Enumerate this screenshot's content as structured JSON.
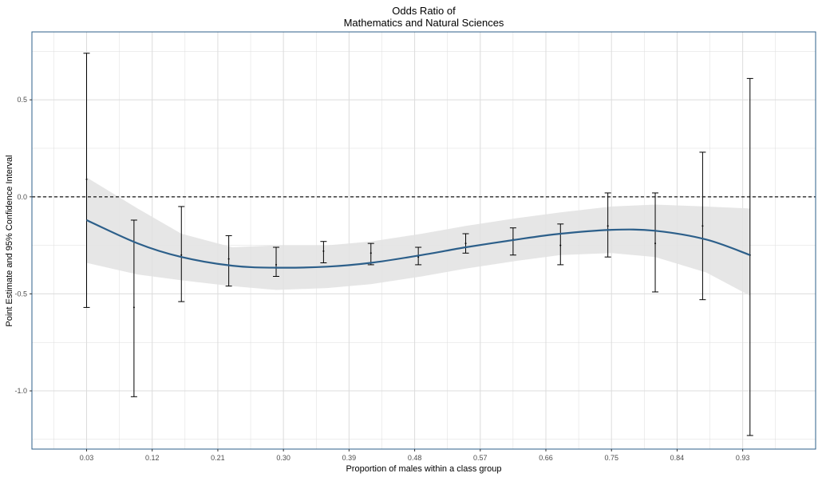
{
  "chart_data": {
    "type": "line",
    "title": "Odds Ratio of",
    "subtitle": "Mathematics and Natural Sciences",
    "xlabel": "Proportion of males within a class group",
    "ylabel": "Point Estimate and 95% Confidence Interval",
    "xlim": [
      -0.045,
      1.03
    ],
    "ylim": [
      -1.3,
      0.85
    ],
    "x_ticks": [
      0.03,
      0.12,
      0.21,
      0.3,
      0.39,
      0.48,
      0.57,
      0.66,
      0.75,
      0.84,
      0.93
    ],
    "x_tick_labels": [
      "0.03",
      "0.12",
      "0.21",
      "0.30",
      "0.39",
      "0.48",
      "0.57",
      "0.66",
      "0.75",
      "0.84",
      "0.93"
    ],
    "y_ticks": [
      -1.0,
      -0.5,
      0.0,
      0.5
    ],
    "y_tick_labels": [
      "-1.0",
      "-0.5",
      "0.0",
      "0.5"
    ],
    "grid": true,
    "reference_line": {
      "y": 0.0,
      "style": "dashed",
      "color": "#000000"
    },
    "point_estimates": {
      "x": [
        0.03,
        0.095,
        0.16,
        0.225,
        0.29,
        0.355,
        0.42,
        0.485,
        0.55,
        0.615,
        0.68,
        0.745,
        0.81,
        0.875,
        0.94
      ],
      "y": [
        0.09,
        -0.57,
        -0.3,
        -0.32,
        -0.35,
        -0.28,
        -0.29,
        -0.31,
        -0.24,
        -0.22,
        -0.25,
        -0.15,
        -0.24,
        -0.15,
        -0.3
      ],
      "lower": [
        -0.57,
        -1.03,
        -0.54,
        -0.46,
        -0.41,
        -0.34,
        -0.35,
        -0.35,
        -0.29,
        -0.3,
        -0.35,
        -0.31,
        -0.49,
        -0.53,
        -1.23
      ],
      "upper": [
        0.74,
        -0.12,
        -0.05,
        -0.2,
        -0.26,
        -0.23,
        -0.24,
        -0.26,
        -0.19,
        -0.16,
        -0.14,
        0.02,
        0.02,
        0.23,
        0.61
      ]
    },
    "smooth": {
      "x": [
        0.03,
        0.1,
        0.16,
        0.23,
        0.29,
        0.36,
        0.42,
        0.49,
        0.55,
        0.62,
        0.68,
        0.75,
        0.81,
        0.88,
        0.94
      ],
      "y": [
        -0.12,
        -0.24,
        -0.31,
        -0.355,
        -0.365,
        -0.36,
        -0.34,
        -0.3,
        -0.26,
        -0.22,
        -0.19,
        -0.17,
        -0.175,
        -0.22,
        -0.3
      ],
      "lower": [
        -0.34,
        -0.4,
        -0.43,
        -0.46,
        -0.48,
        -0.47,
        -0.45,
        -0.41,
        -0.37,
        -0.33,
        -0.3,
        -0.29,
        -0.31,
        -0.39,
        -0.51
      ],
      "upper": [
        0.1,
        -0.06,
        -0.19,
        -0.26,
        -0.25,
        -0.25,
        -0.23,
        -0.19,
        -0.15,
        -0.11,
        -0.08,
        -0.05,
        -0.04,
        -0.05,
        -0.06
      ]
    },
    "colors": {
      "smooth_line": "#2c5f8a",
      "ribbon": "#e2e2e2",
      "error_bars": "#000000",
      "grid": "#dcdcdc",
      "panel_border": "#2c5f8a"
    }
  }
}
